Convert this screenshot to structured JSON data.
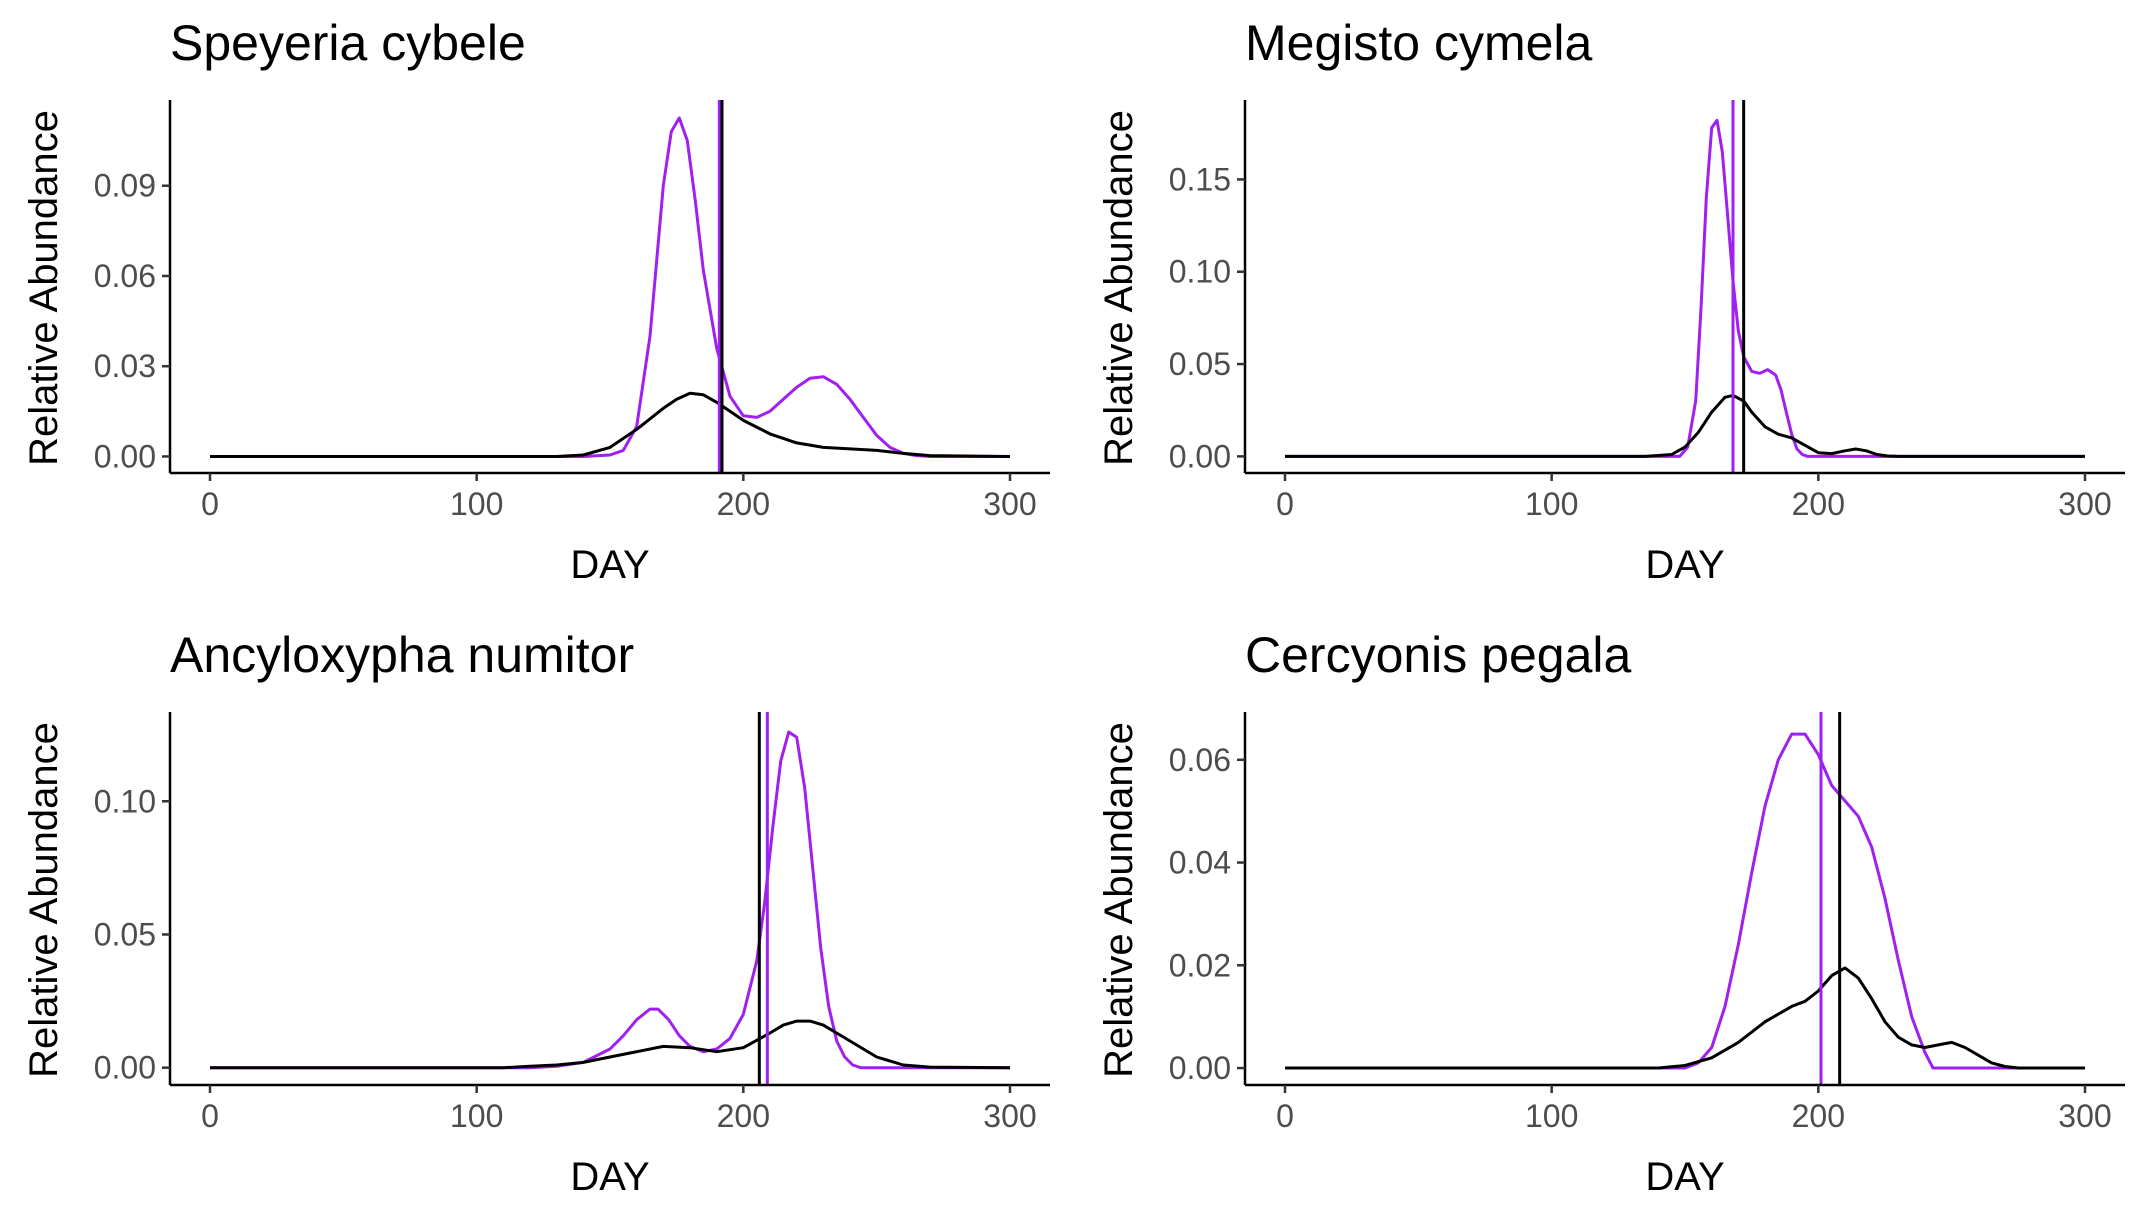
{
  "colors": {
    "group_purple": "#a020f0",
    "group_black": "#000000"
  },
  "chart_data": [
    {
      "type": "line",
      "title": "Speyeria cybele",
      "xlabel": "DAY",
      "ylabel": "Relative Abundance",
      "xlim": [
        -15,
        315
      ],
      "ylim": [
        -0.0055,
        0.1185
      ],
      "xticks": [
        0,
        100,
        200,
        300
      ],
      "xtick_labels": [
        "0",
        "100",
        "200",
        "300"
      ],
      "yticks": [
        0,
        0.03,
        0.06,
        0.09
      ],
      "ytick_labels": [
        "0.00",
        "0.03",
        "0.06",
        "0.09"
      ],
      "grid": false,
      "series": [
        {
          "color": "#a020f0",
          "x": [
            0,
            140,
            150,
            155,
            160,
            165,
            170,
            173,
            176,
            179,
            182,
            185,
            190,
            195,
            200,
            205,
            210,
            215,
            220,
            225,
            230,
            235,
            240,
            245,
            250,
            255,
            260,
            265,
            270,
            300
          ],
          "y": [
            0,
            0,
            0.0005,
            0.002,
            0.01,
            0.04,
            0.09,
            0.108,
            0.1125,
            0.105,
            0.085,
            0.062,
            0.036,
            0.02,
            0.0135,
            0.013,
            0.015,
            0.019,
            0.023,
            0.026,
            0.0265,
            0.024,
            0.019,
            0.013,
            0.007,
            0.003,
            0.001,
            0.0003,
            0,
            0
          ],
          "vline": 191
        },
        {
          "color": "#000000",
          "x": [
            0,
            130,
            140,
            150,
            160,
            170,
            175,
            180,
            185,
            190,
            195,
            200,
            210,
            220,
            230,
            240,
            250,
            260,
            270,
            300
          ],
          "y": [
            0,
            0,
            0.0005,
            0.003,
            0.009,
            0.016,
            0.019,
            0.021,
            0.0205,
            0.018,
            0.015,
            0.012,
            0.0075,
            0.0045,
            0.003,
            0.0025,
            0.002,
            0.001,
            0.0003,
            0
          ],
          "vline": 192
        }
      ]
    },
    {
      "type": "line",
      "title": "Megisto cymela",
      "xlabel": "DAY",
      "ylabel": "Relative Abundance",
      "xlim": [
        -15,
        315
      ],
      "ylim": [
        -0.009,
        0.193
      ],
      "xticks": [
        0,
        100,
        200,
        300
      ],
      "xtick_labels": [
        "0",
        "100",
        "200",
        "300"
      ],
      "yticks": [
        0,
        0.05,
        0.1,
        0.15
      ],
      "ytick_labels": [
        "0.00",
        "0.05",
        "0.10",
        "0.15"
      ],
      "grid": false,
      "series": [
        {
          "color": "#a020f0",
          "x": [
            0,
            148,
            151,
            154,
            156,
            158,
            160,
            162,
            164,
            166,
            168,
            170,
            172,
            175,
            178,
            181,
            184,
            186,
            188,
            190,
            192,
            194,
            196,
            300
          ],
          "y": [
            0,
            0,
            0.005,
            0.03,
            0.08,
            0.14,
            0.178,
            0.182,
            0.165,
            0.13,
            0.095,
            0.068,
            0.054,
            0.046,
            0.045,
            0.047,
            0.044,
            0.036,
            0.024,
            0.012,
            0.004,
            0.001,
            0,
            0
          ],
          "vline": 168
        },
        {
          "color": "#000000",
          "x": [
            0,
            135,
            145,
            150,
            155,
            160,
            165,
            168,
            172,
            175,
            180,
            185,
            190,
            195,
            200,
            205,
            210,
            214,
            218,
            222,
            226,
            230,
            300
          ],
          "y": [
            0,
            0,
            0.001,
            0.005,
            0.013,
            0.024,
            0.032,
            0.033,
            0.03,
            0.024,
            0.016,
            0.012,
            0.01,
            0.006,
            0.002,
            0.0015,
            0.003,
            0.004,
            0.003,
            0.001,
            0.0002,
            0,
            0
          ],
          "vline": 172
        }
      ]
    },
    {
      "type": "line",
      "title": "Ancyloxypha numitor",
      "xlabel": "DAY",
      "ylabel": "Relative Abundance",
      "xlim": [
        -15,
        315
      ],
      "ylim": [
        -0.0065,
        0.1335
      ],
      "xticks": [
        0,
        100,
        200,
        300
      ],
      "xtick_labels": [
        "0",
        "100",
        "200",
        "300"
      ],
      "yticks": [
        0,
        0.05,
        0.1
      ],
      "ytick_labels": [
        "0.00",
        "0.05",
        "0.10"
      ],
      "grid": false,
      "series": [
        {
          "color": "#a020f0",
          "x": [
            0,
            120,
            130,
            140,
            150,
            155,
            160,
            165,
            168,
            172,
            176,
            180,
            185,
            190,
            195,
            200,
            205,
            208,
            211,
            214,
            217,
            220,
            223,
            226,
            229,
            232,
            235,
            238,
            241,
            244,
            300
          ],
          "y": [
            0,
            0,
            0.0005,
            0.002,
            0.007,
            0.012,
            0.018,
            0.022,
            0.022,
            0.018,
            0.012,
            0.008,
            0.006,
            0.007,
            0.011,
            0.02,
            0.04,
            0.062,
            0.09,
            0.115,
            0.126,
            0.124,
            0.105,
            0.075,
            0.045,
            0.023,
            0.01,
            0.004,
            0.001,
            0,
            0
          ],
          "vline": 209
        },
        {
          "color": "#000000",
          "x": [
            0,
            110,
            120,
            130,
            140,
            150,
            160,
            170,
            180,
            190,
            200,
            210,
            215,
            220,
            225,
            230,
            240,
            250,
            260,
            270,
            300
          ],
          "y": [
            0,
            0,
            0.0005,
            0.001,
            0.002,
            0.004,
            0.006,
            0.008,
            0.0075,
            0.006,
            0.0075,
            0.013,
            0.016,
            0.0175,
            0.0175,
            0.016,
            0.01,
            0.004,
            0.001,
            0.0002,
            0
          ],
          "vline": 206
        }
      ]
    },
    {
      "type": "line",
      "title": "Cercyonis pegala",
      "xlabel": "DAY",
      "ylabel": "Relative Abundance",
      "xlim": [
        -15,
        315
      ],
      "ylim": [
        -0.0033,
        0.0693
      ],
      "xticks": [
        0,
        100,
        200,
        300
      ],
      "xtick_labels": [
        "0",
        "100",
        "200",
        "300"
      ],
      "yticks": [
        0,
        0.02,
        0.04,
        0.06
      ],
      "ytick_labels": [
        "0.00",
        "0.02",
        "0.04",
        "0.06"
      ],
      "grid": false,
      "series": [
        {
          "color": "#a020f0",
          "x": [
            0,
            150,
            155,
            160,
            165,
            170,
            175,
            180,
            185,
            190,
            195,
            200,
            205,
            210,
            215,
            220,
            225,
            230,
            235,
            240,
            243,
            300
          ],
          "y": [
            0,
            0,
            0.001,
            0.004,
            0.012,
            0.024,
            0.038,
            0.051,
            0.06,
            0.065,
            0.065,
            0.061,
            0.055,
            0.052,
            0.049,
            0.043,
            0.033,
            0.021,
            0.01,
            0.003,
            0,
            0
          ],
          "vline": 201
        },
        {
          "color": "#000000",
          "x": [
            0,
            140,
            150,
            160,
            170,
            180,
            190,
            195,
            200,
            205,
            210,
            215,
            220,
            225,
            230,
            235,
            240,
            245,
            250,
            255,
            260,
            265,
            270,
            275,
            300
          ],
          "y": [
            0,
            0,
            0.0005,
            0.002,
            0.005,
            0.009,
            0.012,
            0.013,
            0.015,
            0.018,
            0.0195,
            0.0175,
            0.0135,
            0.009,
            0.006,
            0.0045,
            0.004,
            0.0045,
            0.005,
            0.004,
            0.0025,
            0.001,
            0.0003,
            0,
            0
          ],
          "vline": 208
        }
      ]
    }
  ]
}
